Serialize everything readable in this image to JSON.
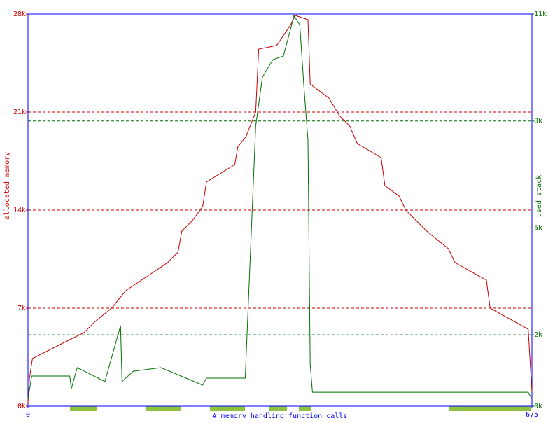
{
  "chart_data": {
    "type": "line",
    "xlabel": "# memory handling function calls",
    "ylabel": "allocated memory",
    "y2label": "used stack",
    "xlim": [
      0,
      675
    ],
    "xticks": [
      0,
      675
    ],
    "ylim": [
      0,
      28000
    ],
    "yticks": [
      {
        "value": 0,
        "label": "0k"
      },
      {
        "value": 7000,
        "label": "7k"
      },
      {
        "value": 14000,
        "label": "14k"
      },
      {
        "value": 21000,
        "label": "21k"
      },
      {
        "value": 28000,
        "label": "28k"
      }
    ],
    "y2lim": [
      0,
      11000
    ],
    "y2ticks": [
      {
        "value": 0,
        "label": "0k"
      },
      {
        "value": 2000,
        "label": "2k"
      },
      {
        "value": 5000,
        "label": "5k"
      },
      {
        "value": 8000,
        "label": "8k"
      },
      {
        "value": 11000,
        "label": "11k"
      }
    ],
    "grid": true,
    "series": [
      {
        "color": "#cc0000",
        "x": [
          0,
          2,
          6,
          56,
          75,
          89,
          112,
          131,
          159,
          187,
          201,
          206,
          220,
          234,
          239,
          277,
          281,
          292,
          305,
          309,
          333,
          352,
          358,
          375,
          378,
          403,
          417,
          431,
          441,
          473,
          478,
          497,
          506,
          534,
          563,
          572,
          614,
          619,
          670,
          675
        ],
        "values": [
          250,
          2000,
          3400,
          4750,
          5250,
          6000,
          7000,
          8250,
          9250,
          10250,
          11000,
          12500,
          13250,
          14250,
          16000,
          17250,
          18500,
          19250,
          21000,
          25500,
          25750,
          27250,
          27900,
          27600,
          23000,
          22000,
          20750,
          20000,
          18750,
          17750,
          15750,
          15000,
          14000,
          12500,
          11250,
          10250,
          9000,
          7000,
          5500,
          1000
        ]
      },
      {
        "color": "#007000",
        "axis": "y2",
        "x": [
          0,
          5,
          56,
          58,
          66,
          103,
          124,
          126,
          141,
          178,
          234,
          239,
          291,
          305,
          314,
          328,
          342,
          352,
          356,
          364,
          370,
          375,
          378,
          381,
          670,
          675
        ],
        "values": [
          196,
          845,
          845,
          490,
          1080,
          690,
          2260,
          690,
          980,
          1080,
          590,
          785,
          785,
          7860,
          9230,
          9720,
          9820,
          10600,
          10960,
          10700,
          8840,
          7460,
          1180,
          390,
          390,
          196
        ]
      }
    ]
  }
}
